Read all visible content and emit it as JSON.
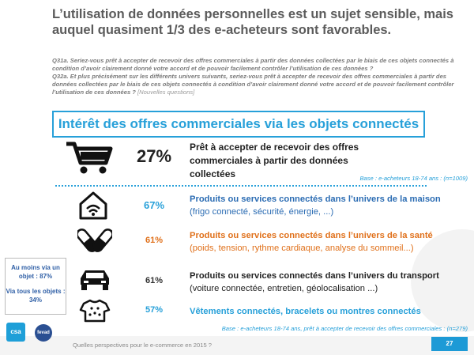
{
  "title": "L’utilisation de données personnelles est un sujet sensible, mais auquel quasiment 1/3 des e-acheteurs sont favorables.",
  "questions": {
    "q31a": "Q31a. Seriez-vous prêt à accepter de recevoir des offres commerciales à partir des données collectées par le biais de ces objets connectés à condition d’avoir clairement donné votre accord et de pouvoir facilement contrôler l’utilisation de ces données ?",
    "q32a": "Q32a. Et plus précisément sur les différents univers suivants, seriez-vous prêt à accepter de recevoir des offres commerciales à partir des données collectées par le biais de ces objets connectés à condition d’avoir clairement donné votre accord et de pouvoir facilement contrôler l’utilisation de ces données ?",
    "new_label": "[Nouvelles questions]"
  },
  "section_title": "Intérêt des offres commerciales via les objets connectés",
  "main_stat": {
    "pct": "27%",
    "label": "Prêt à accepter de recevoir des offres commerciales à partir des données collectées",
    "base": "Base : e-acheteurs 18-74 ans : (n=1009)"
  },
  "rows": [
    {
      "icon": "house-wifi-icon",
      "pct": "67%",
      "pct_color": "#27a0d9",
      "title": "Produits ou services connectés dans l’univers de la maison",
      "sub": "(frigo connecté, sécurité, énergie, ...)",
      "color": "#2b6cb3"
    },
    {
      "icon": "pills-icon",
      "pct": "61%",
      "pct_color": "#e0701a",
      "title": "Produits ou services connectés dans l’univers de la santé",
      "sub": "(poids, tension, rythme cardiaque, analyse du sommeil...)",
      "color": "#e0701a"
    },
    {
      "icon": "car-icon",
      "pct": "61%",
      "pct_color": "#333333",
      "title": "Produits ou services connectés dans l’univers du transport",
      "sub": "(voiture connectée, entretien, géolocalisation ...)",
      "color": "#222222"
    },
    {
      "icon": "shirt-icon",
      "pct": "57%",
      "pct_color": "#27a0d9",
      "title": "Vêtements connectés, bracelets ou montres connectés",
      "sub": "",
      "color": "#27a0d9"
    }
  ],
  "summary": {
    "line1": "Au moins via un objet : 87%",
    "line2": "Via tous les objets : 34%"
  },
  "base_bottom": "Base : e-acheteurs 18-74 ans, prêt à accepter de recevoir des offres commerciales : (n=279)",
  "footer": {
    "text": "Quelles perspectives pour le e-commerce en 2015 ?",
    "page": "27",
    "logo1": "csa",
    "logo2": "fevad"
  },
  "colors": {
    "accent": "#27a0d9",
    "orange": "#e0701a",
    "navy": "#2b6cb3"
  }
}
